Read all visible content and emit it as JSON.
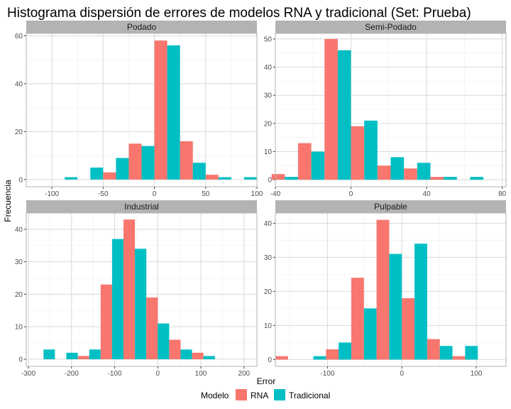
{
  "chart_data": {
    "type": "bar",
    "title": "Histograma dispersión de errores de modelos RNA y tradicional (Set: Prueba)",
    "xlabel": "Error",
    "ylabel": "Frecuencia",
    "legend": {
      "title": "Modelo",
      "position": "bottom",
      "entries": [
        "RNA",
        "Tradicional"
      ]
    },
    "colors": {
      "RNA": "#F8766D",
      "Tradicional": "#00BFC4",
      "strip": "#B3B3B3",
      "grid": "#D9D9D9",
      "frame": "#B3B3B3"
    },
    "grid": true,
    "panels": [
      {
        "name": "Podado",
        "xlim": [
          -125,
          100
        ],
        "ylim": [
          -3,
          61
        ],
        "xticks": [
          -100,
          -50,
          0,
          50,
          100
        ],
        "yticks": [
          0,
          20,
          40,
          60
        ],
        "binwidth": 25,
        "bins": [
          -87.5,
          -62.5,
          -37.5,
          -12.5,
          12.5,
          37.5,
          62.5,
          87.5
        ],
        "series": [
          {
            "name": "RNA",
            "values": [
              0,
              0,
              3,
              15,
              58,
              16,
              2,
              0
            ]
          },
          {
            "name": "Tradicional",
            "values": [
              1,
              5,
              9,
              14,
              56,
              7,
              1,
              1
            ]
          }
        ]
      },
      {
        "name": "Semi-Podado",
        "xlim": [
          -40,
          82
        ],
        "ylim": [
          -2.5,
          52
        ],
        "xticks": [
          -40,
          0,
          40,
          80
        ],
        "yticks": [
          0,
          10,
          20,
          30,
          40,
          50
        ],
        "binwidth": 14,
        "bins": [
          -35,
          -21,
          -7,
          7,
          21,
          35,
          49,
          63,
          77
        ],
        "series": [
          {
            "name": "RNA",
            "values": [
              2,
              13,
              50,
              19,
              5,
              4,
              1,
              0,
              0
            ]
          },
          {
            "name": "Tradicional",
            "values": [
              1,
              10,
              46,
              21,
              8,
              6,
              1,
              1,
              0
            ]
          }
        ]
      },
      {
        "name": "Industrial",
        "xlim": [
          -305,
          230
        ],
        "ylim": [
          -2.2,
          45
        ],
        "xticks": [
          -300,
          -200,
          -100,
          0,
          100,
          200
        ],
        "yticks": [
          0,
          10,
          20,
          30,
          40
        ],
        "binwidth": 53,
        "bins": [
          -265,
          -212,
          -159,
          -106,
          -53,
          0,
          53,
          106,
          159,
          212
        ],
        "series": [
          {
            "name": "RNA",
            "values": [
              0,
              0,
              1,
              23,
              43,
              19,
              6,
              2,
              0,
              0
            ]
          },
          {
            "name": "Tradicional",
            "values": [
              3,
              2,
              3,
              37,
              34,
              11,
              3,
              1,
              0,
              0
            ]
          }
        ]
      },
      {
        "name": "Pulpable",
        "xlim": [
          -170,
          140
        ],
        "ylim": [
          -2,
          43
        ],
        "xticks": [
          -100,
          0,
          100
        ],
        "yticks": [
          0,
          10,
          20,
          30,
          40
        ],
        "binwidth": 34,
        "bins": [
          -153,
          -119,
          -85,
          -51,
          -17,
          17,
          51,
          85,
          119
        ],
        "series": [
          {
            "name": "RNA",
            "values": [
              1,
              0,
              3,
              24,
              41,
              18,
              6,
              1,
              0
            ]
          },
          {
            "name": "Tradicional",
            "values": [
              0,
              1,
              5,
              15,
              31,
              34,
              4,
              4,
              0
            ]
          }
        ]
      }
    ]
  }
}
